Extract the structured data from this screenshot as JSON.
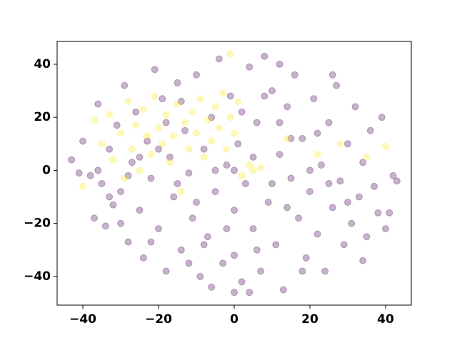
{
  "chart_data": {
    "type": "scatter",
    "xlim": [
      -46.8,
      46.8
    ],
    "ylim": [
      -50.8,
      48.6
    ],
    "xticks": [
      {
        "value": -40,
        "label": "−40"
      },
      {
        "value": -20,
        "label": "−20"
      },
      0,
      20,
      40
    ],
    "yticks": [
      {
        "value": -40,
        "label": "−40"
      },
      {
        "value": -20,
        "label": "−20"
      },
      0,
      20,
      40
    ],
    "grid": false,
    "series": [
      {
        "color": "#440154",
        "x": [
          -43,
          -40,
          -38,
          -37,
          -36,
          -35,
          -34,
          -33,
          -32,
          -31,
          -30,
          -29,
          -28,
          -27,
          -26,
          -25,
          -24,
          -23,
          -22,
          -21,
          -20,
          -19,
          -18,
          -17,
          -16,
          -15,
          -14,
          -13,
          -12,
          -11,
          -10,
          -9,
          -8,
          -7,
          -6,
          -5,
          -4,
          -3,
          -2,
          -1,
          0,
          0,
          1,
          2,
          3,
          4,
          5,
          6,
          7,
          8,
          9,
          10,
          11,
          12,
          13,
          14,
          15,
          16,
          17,
          18,
          19,
          20,
          21,
          22,
          23,
          24,
          25,
          26,
          27,
          28,
          29,
          30,
          31,
          32,
          33,
          34,
          35,
          36,
          37,
          38,
          39,
          40,
          41,
          42,
          43,
          -41,
          -36,
          -30,
          -25,
          -20,
          -15,
          -10,
          -5,
          0,
          5,
          10,
          15,
          20,
          25,
          30,
          -22,
          -12,
          2,
          12,
          18,
          -8,
          6,
          26,
          -18,
          -28,
          8,
          14,
          -2,
          22,
          34,
          -33,
          -6,
          0,
          4,
          12,
          -14
        ],
        "y": [
          4,
          11,
          -2,
          -18,
          25,
          -5,
          -21,
          8,
          -13,
          17,
          -8,
          32,
          -27,
          3,
          22,
          -15,
          -33,
          11,
          -3,
          38,
          -22,
          27,
          -38,
          5,
          -10,
          33,
          -30,
          15,
          -1,
          -18,
          36,
          -40,
          8,
          -25,
          20,
          -8,
          42,
          -35,
          2,
          28,
          -15,
          -32,
          10,
          -42,
          -5,
          39,
          -22,
          18,
          -38,
          43,
          -12,
          30,
          -28,
          6,
          -45,
          24,
          -3,
          36,
          -18,
          12,
          -33,
          -8,
          27,
          -24,
          2,
          -38,
          18,
          -14,
          32,
          -4,
          -28,
          10,
          -20,
          24,
          -10,
          3,
          -25,
          15,
          -6,
          -16,
          20,
          -22,
          -16,
          -2,
          -4,
          -1,
          0,
          -20,
          5,
          8,
          -5,
          -12,
          0,
          0,
          5,
          -5,
          12,
          0,
          -5,
          -12,
          -27,
          -35,
          22,
          18,
          -38,
          -28,
          -30,
          36,
          18,
          -2,
          28,
          -14,
          -22,
          14,
          -34,
          -10,
          -44,
          -46,
          -46,
          40,
          26
        ]
      },
      {
        "color": "#fde725",
        "x": [
          -40,
          -37,
          -35,
          -33,
          -32,
          -30,
          -29,
          -28,
          -27,
          -26,
          -25,
          -24,
          -23,
          -22,
          -21,
          -20,
          -19,
          -18,
          -17,
          -16,
          -15,
          -14,
          -13,
          -12,
          -11,
          -10,
          -9,
          -8,
          -7,
          -6,
          -5,
          -4,
          -3,
          -2,
          -1,
          0,
          1,
          2,
          4,
          5,
          7,
          -1,
          14,
          22,
          28,
          40,
          35
        ],
        "y": [
          -6,
          19,
          10,
          21,
          4,
          14,
          -3,
          26,
          8,
          17,
          0,
          23,
          13,
          6,
          28,
          16,
          10,
          21,
          3,
          13,
          25,
          -8,
          18,
          8,
          22,
          14,
          27,
          5,
          19,
          11,
          24,
          16,
          29,
          8,
          20,
          14,
          26,
          -2,
          2,
          0,
          1,
          44,
          12,
          6,
          10,
          9,
          5
        ]
      }
    ]
  }
}
